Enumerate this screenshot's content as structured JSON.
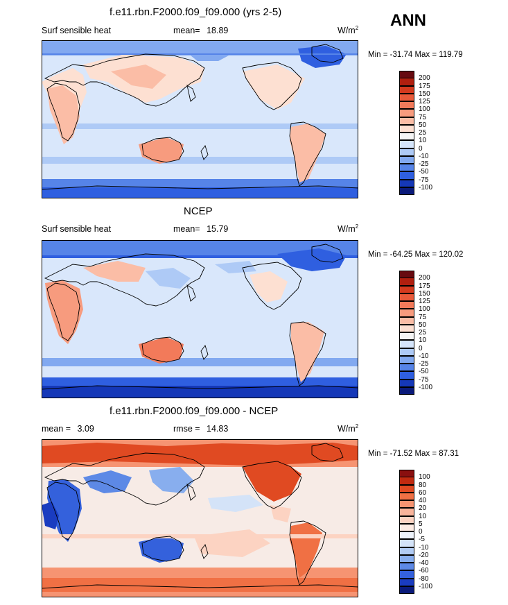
{
  "season": "ANN",
  "panels": [
    {
      "title": "f.e11.rbn.F2000.f09_f09.000 (yrs 2-5)",
      "left_label": "Surf sensible heat",
      "stat_label": "mean=",
      "stat_value": "18.89",
      "units_base": "W/m",
      "units_exp": "2",
      "minmax": "Min = -31.74 Max = 119.79",
      "colorbar_levels": [
        "200",
        "175",
        "150",
        "125",
        "100",
        "75",
        "50",
        "25",
        "10",
        "0",
        "-10",
        "-25",
        "-50",
        "-75",
        "-100"
      ],
      "colorbar_colors": [
        "#670a10",
        "#b01f0f",
        "#d43a1e",
        "#e95a3a",
        "#f27a5a",
        "#f79b7e",
        "#fbbda6",
        "#fde0d2",
        "#f5f5f5",
        "#d5e5fb",
        "#aecaf6",
        "#82a9f0",
        "#5684e8",
        "#2f5fe0",
        "#1538b8",
        "#0a1a7a"
      ]
    },
    {
      "title": "NCEP",
      "left_label": "Surf sensible heat",
      "stat_label": "mean=",
      "stat_value": "15.79",
      "units_base": "W/m",
      "units_exp": "2",
      "minmax": "Min = -64.25 Max = 120.02",
      "colorbar_levels": [
        "200",
        "175",
        "150",
        "125",
        "100",
        "75",
        "50",
        "25",
        "10",
        "0",
        "-10",
        "-25",
        "-50",
        "-75",
        "-100"
      ],
      "colorbar_colors": [
        "#670a10",
        "#b01f0f",
        "#d43a1e",
        "#e95a3a",
        "#f27a5a",
        "#f79b7e",
        "#fbbda6",
        "#fde0d2",
        "#f5f5f5",
        "#d5e5fb",
        "#aecaf6",
        "#82a9f0",
        "#5684e8",
        "#2f5fe0",
        "#1538b8",
        "#0a1a7a"
      ]
    },
    {
      "title": "f.e11.rbn.F2000.f09_f09.000 - NCEP",
      "left_label": "mean =",
      "left_value": "3.09",
      "stat_label": "rmse =",
      "stat_value": "14.83",
      "units_base": "W/m",
      "units_exp": "2",
      "minmax": "Min = -71.52 Max =  87.31",
      "colorbar_levels": [
        "100",
        "80",
        "60",
        "40",
        "20",
        "10",
        "5",
        "0",
        "-5",
        "-10",
        "-20",
        "-40",
        "-60",
        "-80",
        "-100"
      ],
      "colorbar_colors": [
        "#8a0f0f",
        "#c12a10",
        "#e04a22",
        "#f07044",
        "#f69472",
        "#f9b49b",
        "#fcd3c2",
        "#fdece4",
        "#eef3fb",
        "#d4e3f8",
        "#b1cbf3",
        "#88aeee",
        "#5d89e6",
        "#3461dc",
        "#1a3cc0",
        "#0a1a7a"
      ]
    }
  ]
}
